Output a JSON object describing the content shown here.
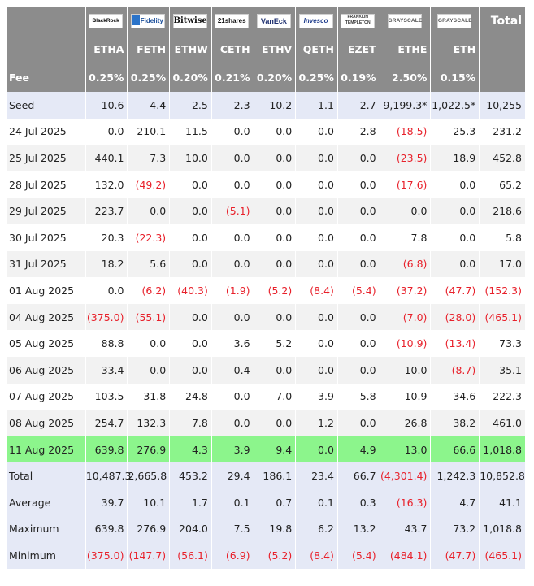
{
  "header": {
    "total_label": "Total",
    "logos": [
      {
        "icon": "blackrock-logo",
        "text": "BlackRock"
      },
      {
        "icon": "fidelity-logo",
        "text": "Fidelity"
      },
      {
        "icon": "bitwise-logo",
        "text": "Bitwise"
      },
      {
        "icon": "21shares-logo",
        "text": "21shares"
      },
      {
        "icon": "vaneck-logo",
        "text": "VanEck"
      },
      {
        "icon": "invesco-logo",
        "text": "Invesco"
      },
      {
        "icon": "franklin-templeton-logo",
        "text": "FRANKLIN TEMPLETON"
      },
      {
        "icon": "grayscale-logo",
        "text": "GRAYSCALE"
      },
      {
        "icon": "grayscale-logo",
        "text": "GRAYSCALE"
      }
    ],
    "tickers": [
      "ETHA",
      "FETH",
      "ETHW",
      "CETH",
      "ETHV",
      "QETH",
      "EZET",
      "ETHE",
      "ETH"
    ]
  },
  "fees": {
    "label": "Fee",
    "values": [
      "0.25%",
      "0.25%",
      "0.20%",
      "0.21%",
      "0.20%",
      "0.25%",
      "0.19%",
      "2.50%",
      "0.15%"
    ]
  },
  "rows": [
    {
      "label": "Seed",
      "style": "blue",
      "values": [
        "10.6",
        "4.4",
        "2.5",
        "2.3",
        "10.2",
        "1.1",
        "2.7",
        "9,199.3*",
        "1,022.5*"
      ],
      "total": "10,255"
    },
    {
      "label": "24 Jul 2025",
      "style": "even",
      "values": [
        "0.0",
        "210.1",
        "11.5",
        "0.0",
        "0.0",
        "0.0",
        "2.8",
        "(18.5)",
        "25.3"
      ],
      "total": "231.2"
    },
    {
      "label": "25 Jul 2025",
      "style": "odd",
      "values": [
        "440.1",
        "7.3",
        "10.0",
        "0.0",
        "0.0",
        "0.0",
        "0.0",
        "(23.5)",
        "18.9"
      ],
      "total": "452.8"
    },
    {
      "label": "28 Jul 2025",
      "style": "even",
      "values": [
        "132.0",
        "(49.2)",
        "0.0",
        "0.0",
        "0.0",
        "0.0",
        "0.0",
        "(17.6)",
        "0.0"
      ],
      "total": "65.2"
    },
    {
      "label": "29 Jul 2025",
      "style": "odd",
      "values": [
        "223.7",
        "0.0",
        "0.0",
        "(5.1)",
        "0.0",
        "0.0",
        "0.0",
        "0.0",
        "0.0"
      ],
      "total": "218.6"
    },
    {
      "label": "30 Jul 2025",
      "style": "even",
      "values": [
        "20.3",
        "(22.3)",
        "0.0",
        "0.0",
        "0.0",
        "0.0",
        "0.0",
        "7.8",
        "0.0"
      ],
      "total": "5.8"
    },
    {
      "label": "31 Jul 2025",
      "style": "odd",
      "values": [
        "18.2",
        "5.6",
        "0.0",
        "0.0",
        "0.0",
        "0.0",
        "0.0",
        "(6.8)",
        "0.0"
      ],
      "total": "17.0"
    },
    {
      "label": "01 Aug 2025",
      "style": "even",
      "values": [
        "0.0",
        "(6.2)",
        "(40.3)",
        "(1.9)",
        "(5.2)",
        "(8.4)",
        "(5.4)",
        "(37.2)",
        "(47.7)"
      ],
      "total": "(152.3)"
    },
    {
      "label": "04 Aug 2025",
      "style": "odd",
      "values": [
        "(375.0)",
        "(55.1)",
        "0.0",
        "0.0",
        "0.0",
        "0.0",
        "0.0",
        "(7.0)",
        "(28.0)"
      ],
      "total": "(465.1)"
    },
    {
      "label": "05 Aug 2025",
      "style": "even",
      "values": [
        "88.8",
        "0.0",
        "0.0",
        "3.6",
        "5.2",
        "0.0",
        "0.0",
        "(10.9)",
        "(13.4)"
      ],
      "total": "73.3"
    },
    {
      "label": "06 Aug 2025",
      "style": "odd",
      "values": [
        "33.4",
        "0.0",
        "0.0",
        "0.4",
        "0.0",
        "0.0",
        "0.0",
        "10.0",
        "(8.7)"
      ],
      "total": "35.1"
    },
    {
      "label": "07 Aug 2025",
      "style": "even",
      "values": [
        "103.5",
        "31.8",
        "24.8",
        "0.0",
        "7.0",
        "3.9",
        "5.8",
        "10.9",
        "34.6"
      ],
      "total": "222.3"
    },
    {
      "label": "08 Aug 2025",
      "style": "odd",
      "values": [
        "254.7",
        "132.3",
        "7.8",
        "0.0",
        "0.0",
        "1.2",
        "0.0",
        "26.8",
        "38.2"
      ],
      "total": "461.0"
    },
    {
      "label": "11 Aug 2025",
      "style": "green",
      "values": [
        "639.8",
        "276.9",
        "4.3",
        "3.9",
        "9.4",
        "0.0",
        "4.9",
        "13.0",
        "66.6"
      ],
      "total": "1,018.8"
    },
    {
      "label": "Total",
      "style": "blue",
      "values": [
        "10,487.3",
        "2,665.8",
        "453.2",
        "29.4",
        "186.1",
        "23.4",
        "66.7",
        "(4,301.4)",
        "1,242.3"
      ],
      "total": "10,852.8"
    },
    {
      "label": "Average",
      "style": "blue",
      "values": [
        "39.7",
        "10.1",
        "1.7",
        "0.1",
        "0.7",
        "0.1",
        "0.3",
        "(16.3)",
        "4.7"
      ],
      "total": "41.1"
    },
    {
      "label": "Maximum",
      "style": "blue",
      "values": [
        "639.8",
        "276.9",
        "204.0",
        "7.5",
        "19.8",
        "6.2",
        "13.2",
        "43.7",
        "73.2"
      ],
      "total": "1,018.8"
    },
    {
      "label": "Minimum",
      "style": "blue",
      "values": [
        "(375.0)",
        "(147.7)",
        "(56.1)",
        "(6.9)",
        "(5.2)",
        "(8.4)",
        "(5.4)",
        "(484.1)",
        "(47.7)"
      ],
      "total": "(465.1)"
    }
  ]
}
